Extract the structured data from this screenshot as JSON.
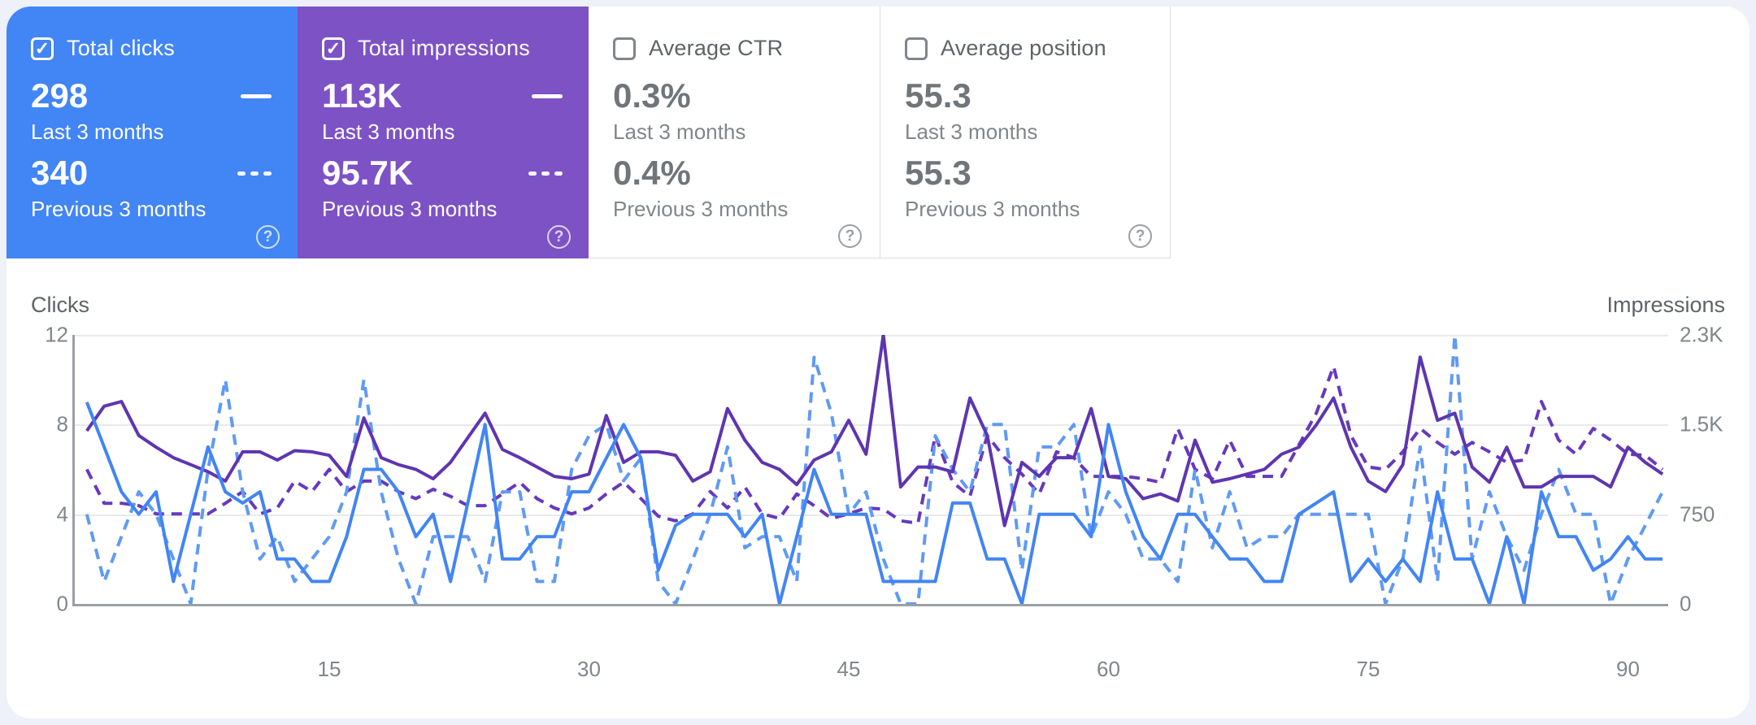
{
  "cards": [
    {
      "label": "Total clicks",
      "checked": true,
      "value_current": "298",
      "period_current": "Last 3 months",
      "value_previous": "340",
      "period_previous": "Previous 3 months",
      "bg_color": "#4285f4",
      "help_icon": "?",
      "check_glyph": "✓"
    },
    {
      "label": "Total impressions",
      "checked": true,
      "value_current": "113K",
      "period_current": "Last 3 months",
      "value_previous": "95.7K",
      "period_previous": "Previous 3 months",
      "bg_color": "#7d52c5",
      "help_icon": "?",
      "check_glyph": "✓"
    },
    {
      "label": "Average CTR",
      "checked": false,
      "value_current": "0.3%",
      "period_current": "Last 3 months",
      "value_previous": "0.4%",
      "period_previous": "Previous 3 months",
      "bg_color": "#ffffff",
      "help_icon": "?",
      "check_glyph": ""
    },
    {
      "label": "Average position",
      "checked": false,
      "value_current": "55.3",
      "period_current": "Last 3 months",
      "value_previous": "55.3",
      "period_previous": "Previous 3 months",
      "bg_color": "#ffffff",
      "help_icon": "?",
      "check_glyph": ""
    }
  ],
  "chart": {
    "left_axis_label": "Clicks",
    "right_axis_label": "Impressions",
    "left_ticks": [
      "12",
      "8",
      "4",
      "0"
    ],
    "right_ticks": [
      "2.3K",
      "1.5K",
      "750",
      "0"
    ],
    "x_ticks": [
      "15",
      "30",
      "45",
      "60",
      "75",
      "90"
    ]
  },
  "chart_data": {
    "type": "line",
    "x": "days 1-92 of current period (aligned with previous period)",
    "x_tick_days": [
      15,
      30,
      45,
      60,
      75,
      90
    ],
    "left_axis": {
      "label": "Clicks",
      "range": [
        0,
        12
      ]
    },
    "right_axis": {
      "label": "Impressions",
      "range": [
        0,
        2300
      ]
    },
    "grid": true,
    "series": [
      {
        "name": "Total impressions — Previous 3 months",
        "axis": "right",
        "color": "#6639be",
        "dashed": true,
        "values": [
          1150,
          860,
          860,
          840,
          770,
          770,
          770,
          770,
          860,
          960,
          770,
          820,
          1050,
          960,
          1150,
          960,
          1050,
          1050,
          960,
          900,
          980,
          920,
          840,
          840,
          940,
          1040,
          900,
          820,
          770,
          820,
          940,
          1040,
          900,
          750,
          710,
          770,
          960,
          820,
          1000,
          770,
          730,
          940,
          840,
          730,
          770,
          820,
          810,
          710,
          690,
          1440,
          1040,
          920,
          1440,
          1250,
          1110,
          940,
          1300,
          1250,
          1090,
          1090,
          1090,
          1070,
          1040,
          1500,
          1150,
          1070,
          1400,
          1090,
          1090,
          1090,
          1360,
          1630,
          2030,
          1440,
          1170,
          1150,
          1300,
          1500,
          1380,
          1280,
          1380,
          1300,
          1210,
          1230,
          1730,
          1400,
          1280,
          1500,
          1400,
          1280,
          1270,
          1150
        ]
      },
      {
        "name": "Total clicks — Previous 3 months",
        "axis": "left",
        "color": "#5f9af5",
        "dashed": true,
        "values": [
          4,
          1,
          3,
          5,
          4,
          2,
          0,
          6,
          10,
          5,
          2,
          3,
          1,
          2,
          3,
          5,
          10,
          5,
          2,
          0,
          3,
          3,
          3,
          1,
          5,
          5,
          1,
          1,
          6,
          7.5,
          8,
          5.5,
          6.5,
          1,
          0,
          2,
          4,
          7,
          2.5,
          3,
          3,
          1,
          11,
          8.5,
          4,
          5,
          2,
          0,
          0,
          7.5,
          6,
          5,
          8,
          8,
          1.5,
          7,
          7,
          8,
          3,
          5,
          4,
          2,
          2,
          1,
          6,
          2.5,
          5,
          2.5,
          3,
          3,
          4,
          4,
          4,
          4,
          4,
          0,
          2,
          7,
          1,
          12,
          2,
          5,
          3,
          1.5,
          4,
          6,
          4,
          4,
          0,
          2,
          3.5,
          5
        ]
      },
      {
        "name": "Total impressions — Last 3 months",
        "axis": "right",
        "color": "#5e35b1",
        "dashed": false,
        "values": [
          1480,
          1690,
          1730,
          1440,
          1340,
          1250,
          1190,
          1130,
          1050,
          1300,
          1300,
          1230,
          1310,
          1300,
          1270,
          1090,
          1590,
          1250,
          1190,
          1150,
          1070,
          1210,
          1420,
          1630,
          1320,
          1250,
          1170,
          1090,
          1070,
          1110,
          1610,
          1210,
          1300,
          1300,
          1270,
          1050,
          1130,
          1670,
          1400,
          1210,
          1150,
          1020,
          1230,
          1300,
          1570,
          1280,
          2300,
          1000,
          1170,
          1170,
          1130,
          1760,
          1440,
          670,
          1210,
          1090,
          1250,
          1250,
          1670,
          1090,
          1070,
          900,
          940,
          880,
          1400,
          1040,
          1070,
          1110,
          1150,
          1280,
          1340,
          1530,
          1760,
          1340,
          1050,
          960,
          1190,
          2110,
          1570,
          1630,
          1170,
          1040,
          1340,
          1000,
          1000,
          1090,
          1090,
          1090,
          1000,
          1340,
          1210,
          1110
        ]
      },
      {
        "name": "Total clicks — Last 3 months",
        "axis": "left",
        "color": "#4285f4",
        "dashed": false,
        "values": [
          9,
          7,
          5,
          4,
          5,
          1,
          4,
          7,
          5,
          4.5,
          5,
          2,
          2,
          1,
          1,
          3,
          6,
          6,
          5,
          3,
          4,
          1,
          4.5,
          8,
          2,
          2,
          3,
          3,
          5,
          5,
          6.5,
          8,
          6.5,
          1.5,
          3.5,
          4,
          4,
          4,
          3,
          4,
          0,
          3,
          6,
          4,
          4,
          4,
          1,
          1,
          1,
          1,
          4.5,
          4.5,
          2,
          2,
          0,
          4,
          4,
          4,
          3,
          8,
          5,
          3,
          2,
          4,
          4,
          3,
          2,
          2,
          1,
          1,
          4,
          4.5,
          5,
          1,
          2,
          1,
          2,
          1,
          5,
          2,
          2,
          0,
          3,
          0,
          5,
          3,
          3,
          1.5,
          2,
          3,
          2,
          2
        ]
      }
    ]
  }
}
